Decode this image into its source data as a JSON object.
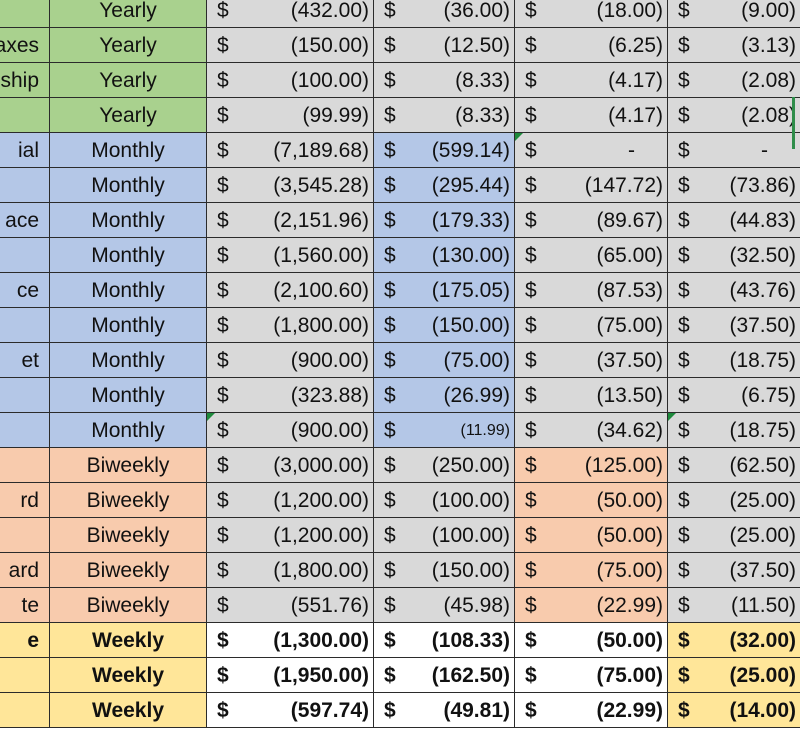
{
  "colors": {
    "green": "#a9d18e",
    "blue": "#b4c7e7",
    "orange": "#f8cbad",
    "yellow": "#ffe699",
    "gray": "#d9d9d9",
    "white": "#ffffff",
    "comment_marker": "#1e8a3c"
  },
  "currency_symbol": "$",
  "rows": [
    {
      "label": "",
      "freq": "Yearly",
      "v1": "(432.00)",
      "v2": "(36.00)",
      "v3": "(18.00)",
      "v4": "(9.00)"
    },
    {
      "label": "axes",
      "freq": "Yearly",
      "v1": "(150.00)",
      "v2": "(12.50)",
      "v3": "(6.25)",
      "v4": "(3.13)"
    },
    {
      "label": "ship",
      "freq": "Yearly",
      "v1": "(100.00)",
      "v2": "(8.33)",
      "v3": "(4.17)",
      "v4": "(2.08)"
    },
    {
      "label": "",
      "freq": "Yearly",
      "v1": "(99.99)",
      "v2": "(8.33)",
      "v3": "(4.17)",
      "v4": "(2.08)"
    },
    {
      "label": "ial",
      "freq": "Monthly",
      "v1": "(7,189.68)",
      "v2": "(599.14)",
      "v3": "-",
      "v4": "-"
    },
    {
      "label": "",
      "freq": "Monthly",
      "v1": "(3,545.28)",
      "v2": "(295.44)",
      "v3": "(147.72)",
      "v4": "(73.86)"
    },
    {
      "label": "ace",
      "freq": "Monthly",
      "v1": "(2,151.96)",
      "v2": "(179.33)",
      "v3": "(89.67)",
      "v4": "(44.83)"
    },
    {
      "label": "",
      "freq": "Monthly",
      "v1": "(1,560.00)",
      "v2": "(130.00)",
      "v3": "(65.00)",
      "v4": "(32.50)"
    },
    {
      "label": "ce",
      "freq": "Monthly",
      "v1": "(2,100.60)",
      "v2": "(175.05)",
      "v3": "(87.53)",
      "v4": "(43.76)"
    },
    {
      "label": "",
      "freq": "Monthly",
      "v1": "(1,800.00)",
      "v2": "(150.00)",
      "v3": "(75.00)",
      "v4": "(37.50)"
    },
    {
      "label": "et",
      "freq": "Monthly",
      "v1": "(900.00)",
      "v2": "(75.00)",
      "v3": "(37.50)",
      "v4": "(18.75)"
    },
    {
      "label": "",
      "freq": "Monthly",
      "v1": "(323.88)",
      "v2": "(26.99)",
      "v3": "(13.50)",
      "v4": "(6.75)"
    },
    {
      "label": "",
      "freq": "Monthly",
      "v1": "(900.00)",
      "v2": "(11.99)",
      "v3": "(34.62)",
      "v4": "(18.75)"
    },
    {
      "label": "",
      "freq": "Biweekly",
      "v1": "(3,000.00)",
      "v2": "(250.00)",
      "v3": "(125.00)",
      "v4": "(62.50)"
    },
    {
      "label": "rd",
      "freq": "Biweekly",
      "v1": "(1,200.00)",
      "v2": "(100.00)",
      "v3": "(50.00)",
      "v4": "(25.00)"
    },
    {
      "label": "",
      "freq": "Biweekly",
      "v1": "(1,200.00)",
      "v2": "(100.00)",
      "v3": "(50.00)",
      "v4": "(25.00)"
    },
    {
      "label": "ard",
      "freq": "Biweekly",
      "v1": "(1,800.00)",
      "v2": "(150.00)",
      "v3": "(75.00)",
      "v4": "(37.50)"
    },
    {
      "label": "te",
      "freq": "Biweekly",
      "v1": "(551.76)",
      "v2": "(45.98)",
      "v3": "(22.99)",
      "v4": "(11.50)"
    },
    {
      "label": "e",
      "freq": "Weekly",
      "v1": "(1,300.00)",
      "v2": "(108.33)",
      "v3": "(50.00)",
      "v4": "(32.00)"
    },
    {
      "label": "",
      "freq": "Weekly",
      "v1": "(1,950.00)",
      "v2": "(162.50)",
      "v3": "(75.00)",
      "v4": "(25.00)"
    },
    {
      "label": "",
      "freq": "Weekly",
      "v1": "(597.74)",
      "v2": "(49.81)",
      "v3": "(22.99)",
      "v4": "(14.00)"
    }
  ]
}
